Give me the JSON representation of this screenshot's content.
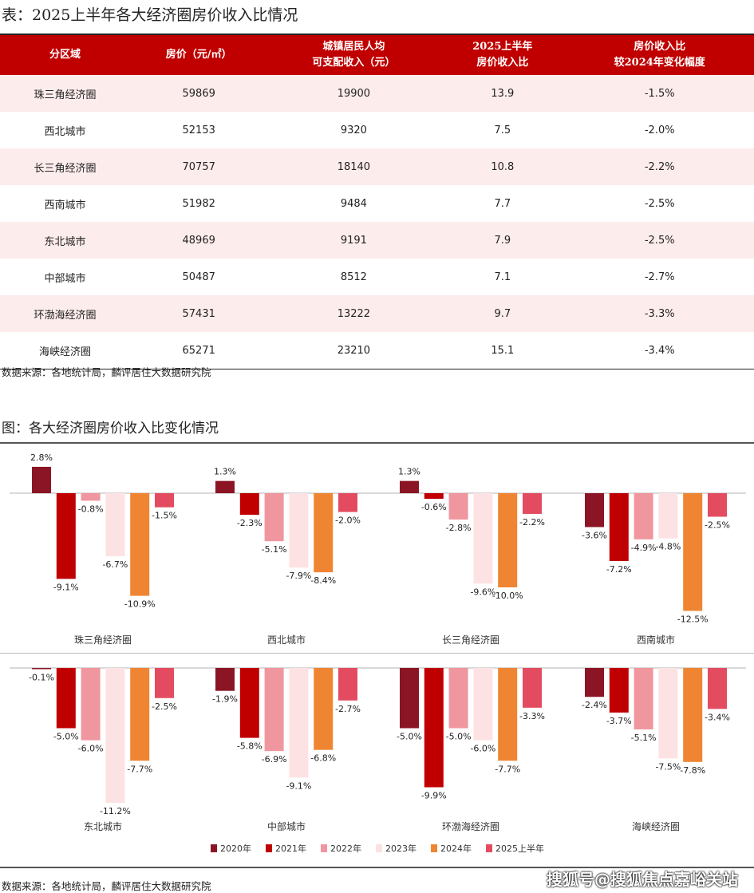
{
  "table": {
    "title": "表：2025上半年各大经济圈房价收入比情况",
    "headers": [
      "分区域",
      "房价（元/㎡）",
      "城镇居民人均\n可支配收入（元）",
      "2025上半年\n房价收入比",
      "房价收入比\n较2024年变化幅度"
    ],
    "rows": [
      [
        "珠三角经济圈",
        "59869",
        "19900",
        "13.9",
        "-1.5%"
      ],
      [
        "西北城市",
        "52153",
        "9320",
        "7.5",
        "-2.0%"
      ],
      [
        "长三角经济圈",
        "70757",
        "18140",
        "10.8",
        "-2.2%"
      ],
      [
        "西南城市",
        "51982",
        "9484",
        "7.7",
        "-2.5%"
      ],
      [
        "东北城市",
        "48969",
        "9191",
        "7.9",
        "-2.5%"
      ],
      [
        "中部城市",
        "50487",
        "8512",
        "7.1",
        "-2.7%"
      ],
      [
        "环渤海经济圈",
        "57431",
        "13222",
        "9.7",
        "-3.3%"
      ],
      [
        "海峡经济圈",
        "65271",
        "23210",
        "15.1",
        "-3.4%"
      ]
    ],
    "source": "数据来源：各地统计局，麟评居住大数据研究院"
  },
  "chart_title": "图：各大经济圈房价收入比变化情况",
  "chart_data": {
    "type": "bar",
    "unit": "%",
    "categories": [
      "珠三角经济圈",
      "西北城市",
      "长三角经济圈",
      "西南城市",
      "东北城市",
      "中部城市",
      "环渤海经济圈",
      "海峡经济圈"
    ],
    "series": [
      {
        "name": "2020年",
        "color": "#8b1525",
        "values": [
          2.8,
          1.3,
          1.3,
          -3.6,
          -0.1,
          -1.9,
          -5.0,
          -2.4
        ]
      },
      {
        "name": "2021年",
        "color": "#c00000",
        "values": [
          -9.1,
          -2.3,
          -0.6,
          -7.2,
          -5.0,
          -5.8,
          -9.9,
          -3.7
        ]
      },
      {
        "name": "2022年",
        "color": "#f0969f",
        "values": [
          -0.8,
          -5.1,
          -2.8,
          -4.9,
          -6.0,
          -6.9,
          -5.0,
          -5.1
        ]
      },
      {
        "name": "2023年",
        "color": "#fde2e4",
        "values": [
          -6.7,
          -7.9,
          -9.6,
          -4.8,
          -11.2,
          -9.1,
          -6.0,
          -7.5
        ]
      },
      {
        "name": "2024年",
        "color": "#ef8532",
        "values": [
          -10.9,
          -8.4,
          -10.0,
          -12.5,
          -7.7,
          -6.8,
          -7.7,
          -7.8
        ]
      },
      {
        "name": "2025上半年",
        "color": "#e34c60",
        "values": [
          -1.5,
          -2.0,
          -2.2,
          -2.5,
          -2.5,
          -2.7,
          -3.3,
          -3.4
        ]
      }
    ],
    "legend": "bottom",
    "grid": false
  },
  "chart_source": "数据来源：各地统计局，麟评居住大数据研究院",
  "watermark": "搜狐号@搜狐焦点嘉峪关站"
}
